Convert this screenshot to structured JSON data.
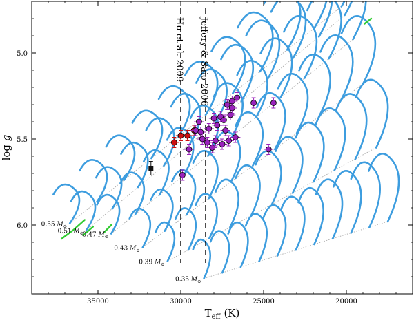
{
  "chart_data": {
    "type": "scatter",
    "title": "",
    "xlabel": "T",
    "xlabel_sub": "eff",
    "xlabel_unit": " (K)",
    "ylabel": "log g",
    "xlim": [
      39000,
      16000
    ],
    "ylim": [
      6.4,
      4.7
    ],
    "x_ticks": [
      35000,
      30000,
      25000,
      20000
    ],
    "x_tick_labels": [
      "35000",
      "30000",
      "25000",
      "20000"
    ],
    "y_ticks": [
      5.0,
      5.5,
      6.0
    ],
    "y_tick_labels": [
      "5.0",
      "5.5",
      "6.0"
    ],
    "vlines": [
      {
        "x": 30000,
        "label": "Hu et al. 2009"
      },
      {
        "x": 28500,
        "label": "Jeffery & Saio 2006"
      }
    ],
    "mass_labels": [
      {
        "mass": "0.55",
        "x": 36700,
        "y": 5.99
      },
      {
        "mass": "0.51",
        "x": 35700,
        "y": 6.03
      },
      {
        "mass": "0.47",
        "x": 34200,
        "y": 6.05
      },
      {
        "mass": "0.43",
        "x": 32300,
        "y": 6.13
      },
      {
        "mass": "0.39",
        "x": 30800,
        "y": 6.21
      },
      {
        "mass": "0.35",
        "x": 28600,
        "y": 6.31
      }
    ],
    "mass_unit": "M",
    "mass_sub": "⊙",
    "series": [
      {
        "name": "observed stars (red)",
        "color": "#cc1111",
        "points": [
          {
            "x": 30400,
            "y": 5.52,
            "dx": 300,
            "dy": 0.03
          },
          {
            "x": 30000,
            "y": 5.48,
            "dx": 300,
            "dy": 0.03
          },
          {
            "x": 29600,
            "y": 5.48,
            "dx": 300,
            "dy": 0.03
          },
          {
            "x": 29200,
            "y": 5.45,
            "dx": 300,
            "dy": 0.03
          }
        ]
      },
      {
        "name": "observed stars (purple)",
        "color": "#9922bb",
        "points": [
          {
            "x": 29900,
            "y": 5.71,
            "dx": 300,
            "dy": 0.03
          },
          {
            "x": 29500,
            "y": 5.56,
            "dx": 300,
            "dy": 0.03
          },
          {
            "x": 29100,
            "y": 5.45,
            "dx": 300,
            "dy": 0.03
          },
          {
            "x": 28900,
            "y": 5.4,
            "dx": 300,
            "dy": 0.03
          },
          {
            "x": 28800,
            "y": 5.46,
            "dx": 300,
            "dy": 0.03
          },
          {
            "x": 28700,
            "y": 5.5,
            "dx": 300,
            "dy": 0.03
          },
          {
            "x": 28400,
            "y": 5.52,
            "dx": 300,
            "dy": 0.03
          },
          {
            "x": 28300,
            "y": 5.44,
            "dx": 300,
            "dy": 0.03
          },
          {
            "x": 28100,
            "y": 5.55,
            "dx": 300,
            "dy": 0.03
          },
          {
            "x": 28000,
            "y": 5.38,
            "dx": 300,
            "dy": 0.03
          },
          {
            "x": 27900,
            "y": 5.51,
            "dx": 300,
            "dy": 0.03
          },
          {
            "x": 27800,
            "y": 5.42,
            "dx": 300,
            "dy": 0.03
          },
          {
            "x": 27600,
            "y": 5.37,
            "dx": 300,
            "dy": 0.03
          },
          {
            "x": 27500,
            "y": 5.53,
            "dx": 300,
            "dy": 0.03
          },
          {
            "x": 27400,
            "y": 5.39,
            "dx": 300,
            "dy": 0.03
          },
          {
            "x": 27300,
            "y": 5.45,
            "dx": 300,
            "dy": 0.03
          },
          {
            "x": 27100,
            "y": 5.51,
            "dx": 300,
            "dy": 0.03
          },
          {
            "x": 27200,
            "y": 5.3,
            "dx": 300,
            "dy": 0.03
          },
          {
            "x": 27000,
            "y": 5.36,
            "dx": 300,
            "dy": 0.03
          },
          {
            "x": 26900,
            "y": 5.32,
            "dx": 300,
            "dy": 0.03
          },
          {
            "x": 26900,
            "y": 5.28,
            "dx": 300,
            "dy": 0.03
          },
          {
            "x": 26700,
            "y": 5.49,
            "dx": 300,
            "dy": 0.03
          },
          {
            "x": 26600,
            "y": 5.26,
            "dx": 300,
            "dy": 0.03
          },
          {
            "x": 25600,
            "y": 5.29,
            "dx": 300,
            "dy": 0.03
          },
          {
            "x": 24700,
            "y": 5.56,
            "dx": 300,
            "dy": 0.03
          },
          {
            "x": 24400,
            "y": 5.29,
            "dx": 300,
            "dy": 0.03
          }
        ]
      },
      {
        "name": "observed star (black)",
        "color": "#111111",
        "points": [
          {
            "x": 31800,
            "y": 5.67,
            "dx": 0,
            "dy": 0.04
          }
        ]
      }
    ],
    "tracks_description": "blue evolutionary tracks for masses 0.35-0.55 Msun, green pre-ZAEHB segments, dotted grey zero-age lines"
  },
  "colors": {
    "track": "#3d9ddf",
    "track_green": "#33cc33",
    "zams": "#aaaaaa",
    "axis": "#000000"
  }
}
